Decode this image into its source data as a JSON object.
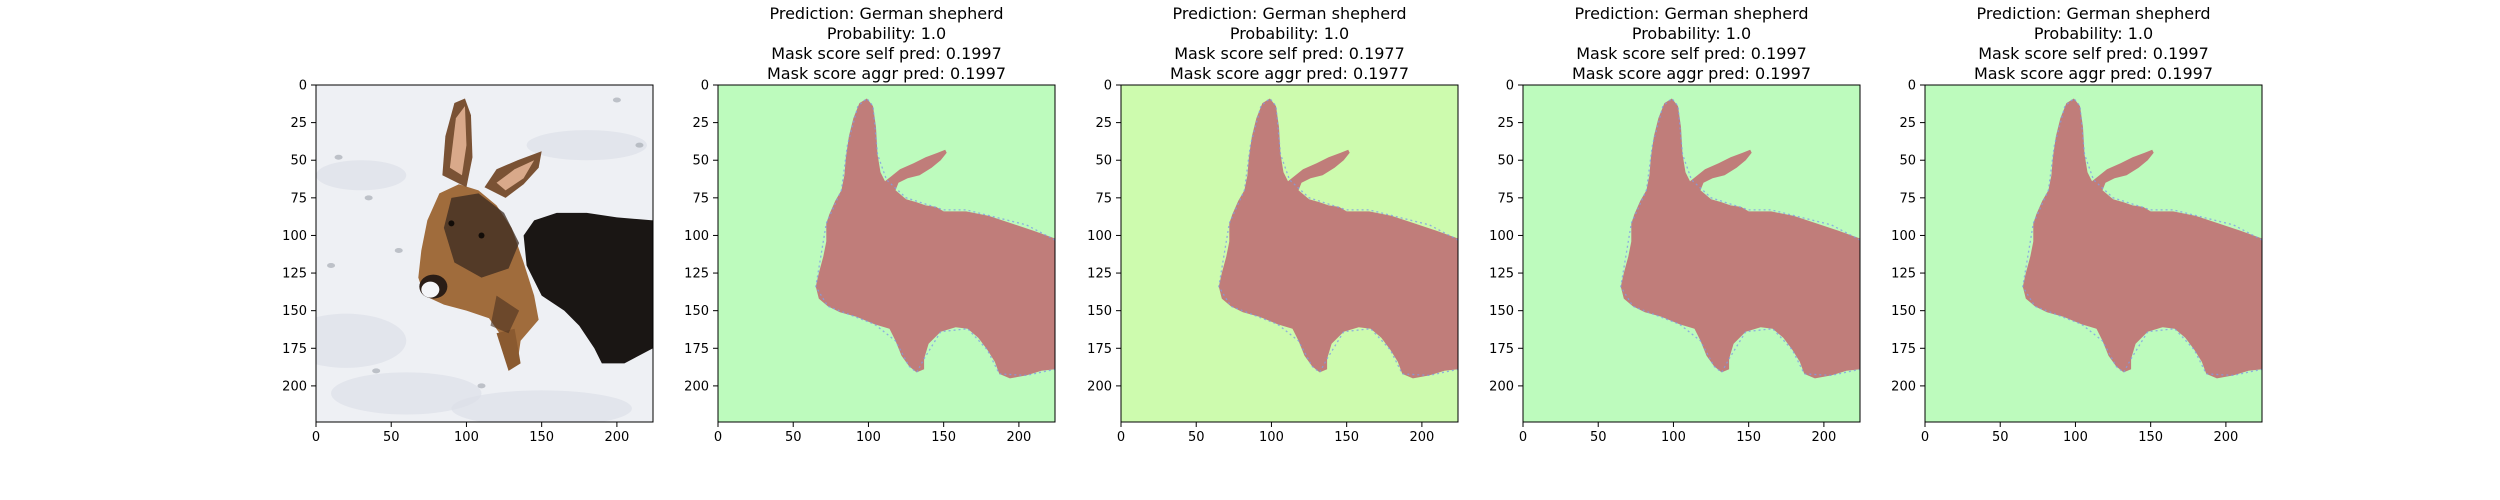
{
  "figure": {
    "background": "#ffffff",
    "axis_color": "#000000"
  },
  "chart_data": [
    {
      "type": "image",
      "title_lines": [],
      "content": "photo",
      "xlim": [
        0,
        224
      ],
      "ylim": [
        224,
        0
      ],
      "xticks": [
        0,
        50,
        100,
        150,
        200
      ],
      "yticks": [
        0,
        25,
        50,
        75,
        100,
        125,
        150,
        175,
        200
      ],
      "colors": {
        "snow": "#eef0f4",
        "fur_dark": "#1a1614",
        "fur_tan": "#a06c3c"
      }
    },
    {
      "type": "heatmap",
      "title_lines": [
        "Prediction: German shepherd",
        "Probability: 1.0",
        "Mask score self pred: 0.1997",
        "Mask score aggr pred: 0.1997"
      ],
      "xlim": [
        0,
        224
      ],
      "ylim": [
        224,
        0
      ],
      "xticks": [
        0,
        50,
        100,
        150,
        200
      ],
      "yticks": [
        0,
        25,
        50,
        75,
        100,
        125,
        150,
        175,
        200
      ],
      "background_color": "#bdfbbd",
      "mask_color": "#c07d7a",
      "edge_color": "#7f9ce6"
    },
    {
      "type": "heatmap",
      "title_lines": [
        "Prediction: German shepherd",
        "Probability: 1.0",
        "Mask score self pred: 0.1977",
        "Mask score aggr pred: 0.1977"
      ],
      "xlim": [
        0,
        224
      ],
      "ylim": [
        224,
        0
      ],
      "xticks": [
        0,
        50,
        100,
        150,
        200
      ],
      "yticks": [
        0,
        25,
        50,
        75,
        100,
        125,
        150,
        175,
        200
      ],
      "background_color": "#cdfbae",
      "mask_color": "#c07d7a",
      "edge_color": "#7f9ce6"
    },
    {
      "type": "heatmap",
      "title_lines": [
        "Prediction: German shepherd",
        "Probability: 1.0",
        "Mask score self pred: 0.1997",
        "Mask score aggr pred: 0.1997"
      ],
      "xlim": [
        0,
        224
      ],
      "ylim": [
        224,
        0
      ],
      "xticks": [
        0,
        50,
        100,
        150,
        200
      ],
      "yticks": [
        0,
        25,
        50,
        75,
        100,
        125,
        150,
        175,
        200
      ],
      "background_color": "#bdfbbd",
      "mask_color": "#c07d7a",
      "edge_color": "#7f9ce6"
    },
    {
      "type": "heatmap",
      "title_lines": [
        "Prediction: German shepherd",
        "Probability: 1.0",
        "Mask score self pred: 0.1997",
        "Mask score aggr pred: 0.1997"
      ],
      "xlim": [
        0,
        224
      ],
      "ylim": [
        224,
        0
      ],
      "xticks": [
        0,
        50,
        100,
        150,
        200
      ],
      "yticks": [
        0,
        25,
        50,
        75,
        100,
        125,
        150,
        175,
        200
      ],
      "background_color": "#bdfbbd",
      "mask_color": "#c07d7a",
      "edge_color": "#7f9ce6"
    }
  ]
}
